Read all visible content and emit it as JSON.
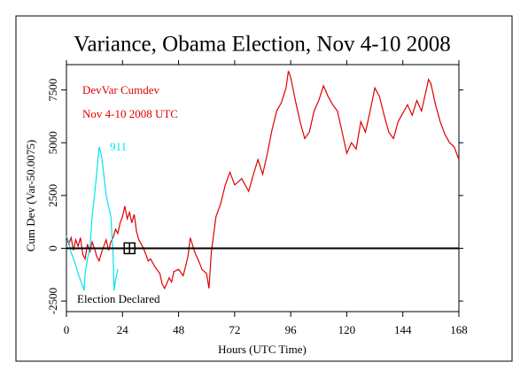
{
  "chart_data": {
    "type": "line",
    "title": "Variance, Obama Election, Nov 4-10 2008",
    "xlabel": "Hours (UTC Time)",
    "ylabel": "Cum Dev (Var-50.0075)",
    "xlim": [
      0,
      168
    ],
    "xticks": [
      0,
      24,
      48,
      72,
      96,
      120,
      144,
      168
    ],
    "ylim": [
      -3000,
      8700
    ],
    "yticks": [
      -2500,
      0,
      2500,
      5000,
      7500
    ],
    "zero_line": 0,
    "event": {
      "x": 27,
      "y": 0
    },
    "annotations": [
      {
        "text": "DevVar Cumdev",
        "color": "#e00000"
      },
      {
        "text": "Nov 4-10 2008 UTC",
        "color": "#e00000"
      },
      {
        "text": "911",
        "color": "#00e5ee"
      },
      {
        "text": "Election Declared",
        "color": "#000000"
      }
    ],
    "series": [
      {
        "color": "#e00000",
        "x": [
          0,
          1,
          2,
          3,
          4,
          5,
          6,
          7,
          8,
          9,
          10,
          11,
          12,
          13,
          14,
          15,
          16,
          17,
          18,
          19,
          20,
          21,
          22,
          23,
          24,
          25,
          26,
          27,
          28,
          29,
          30,
          31,
          32,
          33,
          34,
          35,
          36,
          38,
          40,
          41,
          42,
          44,
          45,
          46,
          48,
          50,
          52,
          53,
          55,
          57,
          58,
          60,
          61,
          62,
          64,
          66,
          68,
          70,
          72,
          75,
          78,
          80,
          82,
          84,
          86,
          88,
          90,
          92,
          94,
          95,
          96,
          98,
          100,
          102,
          104,
          106,
          108,
          110,
          112,
          114,
          116,
          118,
          120,
          122,
          124,
          126,
          128,
          130,
          132,
          134,
          136,
          138,
          140,
          142,
          144,
          146,
          148,
          150,
          152,
          154,
          155,
          156,
          158,
          160,
          162,
          164,
          166,
          168
        ],
        "values": [
          600,
          200,
          500,
          -100,
          400,
          100,
          500,
          -300,
          -500,
          200,
          -200,
          300,
          0,
          -400,
          -600,
          -200,
          100,
          400,
          -100,
          300,
          500,
          900,
          700,
          1200,
          1500,
          2000,
          1400,
          1700,
          1200,
          1600,
          800,
          400,
          200,
          0,
          -300,
          -600,
          -500,
          -900,
          -1200,
          -1700,
          -1900,
          -1400,
          -1600,
          -1100,
          -1000,
          -1300,
          -400,
          500,
          -200,
          -700,
          -1000,
          -1200,
          -1900,
          -200,
          1500,
          2100,
          3000,
          3600,
          3000,
          3300,
          2700,
          3500,
          4200,
          3500,
          4500,
          5600,
          6500,
          6900,
          7600,
          8400,
          8100,
          7000,
          6000,
          5200,
          5500,
          6500,
          7000,
          7700,
          7200,
          6800,
          6500,
          5500,
          4500,
          5000,
          4700,
          6000,
          5500,
          6500,
          7600,
          7200,
          6300,
          5500,
          5200,
          6000,
          6400,
          6800,
          6300,
          7000,
          6500,
          7500,
          8000,
          7800,
          6800,
          6000,
          5400,
          5000,
          4800,
          4200
        ]
      },
      {
        "color": "#00e5ee",
        "x": [
          0,
          1,
          2,
          3,
          4,
          5,
          6,
          7,
          7.6,
          8,
          9,
          10,
          11,
          12,
          13,
          14,
          15,
          16,
          17,
          18,
          19,
          20,
          20.4,
          21,
          22
        ],
        "values": [
          600,
          300,
          -200,
          -500,
          -800,
          -1200,
          -1500,
          -1800,
          -2000,
          -1200,
          -500,
          0,
          1500,
          2500,
          3600,
          4800,
          4400,
          3500,
          2500,
          2000,
          1500,
          -300,
          -2000,
          -1500,
          -1000
        ]
      }
    ]
  }
}
